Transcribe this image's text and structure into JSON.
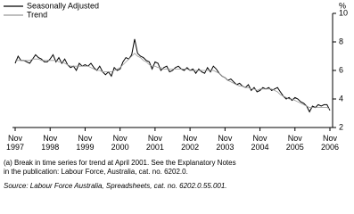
{
  "chart_data": {
    "type": "line",
    "y_unit": "%",
    "x": [
      "1997-11",
      "1997-12",
      "1998-01",
      "1998-02",
      "1998-03",
      "1998-04",
      "1998-05",
      "1998-06",
      "1998-07",
      "1998-08",
      "1998-09",
      "1998-10",
      "1998-11",
      "1998-12",
      "1999-01",
      "1999-02",
      "1999-03",
      "1999-04",
      "1999-05",
      "1999-06",
      "1999-07",
      "1999-08",
      "1999-09",
      "1999-10",
      "1999-11",
      "1999-12",
      "2000-01",
      "2000-02",
      "2000-03",
      "2000-04",
      "2000-05",
      "2000-06",
      "2000-07",
      "2000-08",
      "2000-09",
      "2000-10",
      "2000-11",
      "2000-12",
      "2001-01",
      "2001-02",
      "2001-03",
      "2001-04",
      "2001-05",
      "2001-06",
      "2001-07",
      "2001-08",
      "2001-09",
      "2001-10",
      "2001-11",
      "2001-12",
      "2002-01",
      "2002-02",
      "2002-03",
      "2002-04",
      "2002-05",
      "2002-06",
      "2002-07",
      "2002-08",
      "2002-09",
      "2002-10",
      "2002-11",
      "2002-12",
      "2003-01",
      "2003-02",
      "2003-03",
      "2003-04",
      "2003-05",
      "2003-06",
      "2003-07",
      "2003-08",
      "2003-09",
      "2003-10",
      "2003-11",
      "2003-12",
      "2004-01",
      "2004-02",
      "2004-03",
      "2004-04",
      "2004-05",
      "2004-06",
      "2004-07",
      "2004-08",
      "2004-09",
      "2004-10",
      "2004-11",
      "2004-12",
      "2005-01",
      "2005-02",
      "2005-03",
      "2005-04",
      "2005-05",
      "2005-06",
      "2005-07",
      "2005-08",
      "2005-09",
      "2005-10",
      "2005-11",
      "2005-12",
      "2006-01",
      "2006-02",
      "2006-03",
      "2006-04",
      "2006-05",
      "2006-06",
      "2006-07",
      "2006-08",
      "2006-09",
      "2006-10",
      "2006-11"
    ],
    "series": [
      {
        "name": "Seasonally Adjusted",
        "color": "#000000",
        "values": [
          6.5,
          7.0,
          6.7,
          6.7,
          6.6,
          6.5,
          6.8,
          7.1,
          6.9,
          6.8,
          6.6,
          6.6,
          6.8,
          7.1,
          6.6,
          6.9,
          6.5,
          6.8,
          6.4,
          6.2,
          6.3,
          6.0,
          6.5,
          6.3,
          6.4,
          6.3,
          6.5,
          6.2,
          6.0,
          6.3,
          5.9,
          5.7,
          5.9,
          5.6,
          6.2,
          6.0,
          6.1,
          6.6,
          6.9,
          6.8,
          7.1,
          8.2,
          7.2,
          7.0,
          6.9,
          6.7,
          6.6,
          6.1,
          6.6,
          6.5,
          6.0,
          6.2,
          6.3,
          5.9,
          6.0,
          6.2,
          6.3,
          6.1,
          6.0,
          6.2,
          6.0,
          6.1,
          5.8,
          6.1,
          5.9,
          5.8,
          6.2,
          5.9,
          6.3,
          6.1,
          5.8,
          5.6,
          5.5,
          5.3,
          5.4,
          5.2,
          5.0,
          5.1,
          4.9,
          4.8,
          5.0,
          4.6,
          4.8,
          4.5,
          4.6,
          4.8,
          4.7,
          4.8,
          4.6,
          4.7,
          4.8,
          4.5,
          4.2,
          4.0,
          4.1,
          3.9,
          4.1,
          4.0,
          3.8,
          3.7,
          3.5,
          3.1,
          3.5,
          3.4,
          3.6,
          3.5,
          3.6,
          3.6,
          3.2
        ]
      },
      {
        "name": "Trend",
        "color": "#999999",
        "values": [
          6.7,
          6.7,
          6.7,
          6.7,
          6.7,
          6.7,
          6.8,
          6.8,
          6.8,
          6.7,
          6.7,
          6.7,
          6.7,
          6.7,
          6.7,
          6.6,
          6.6,
          6.5,
          6.4,
          6.3,
          6.3,
          6.3,
          6.3,
          6.3,
          6.3,
          6.3,
          6.2,
          6.1,
          6.0,
          6.0,
          5.9,
          5.9,
          5.9,
          5.9,
          6.0,
          6.1,
          6.2,
          6.4,
          6.6,
          6.8,
          7.0,
          7.2,
          7.0,
          6.9,
          6.7,
          6.6,
          6.4,
          6.3,
          6.3,
          6.2,
          6.2,
          6.1,
          6.1,
          6.1,
          6.1,
          6.1,
          6.1,
          6.1,
          6.1,
          6.1,
          6.0,
          6.0,
          6.0,
          6.0,
          6.0,
          6.0,
          6.0,
          6.0,
          6.0,
          5.9,
          5.8,
          5.6,
          5.5,
          5.3,
          5.2,
          5.1,
          5.0,
          4.9,
          4.9,
          4.8,
          4.8,
          4.7,
          4.7,
          4.6,
          4.7,
          4.7,
          4.7,
          4.7,
          4.7,
          4.6,
          4.5,
          4.3,
          4.2,
          4.1,
          4.0,
          4.0,
          3.9,
          3.8,
          3.7,
          3.6,
          3.5,
          3.4,
          3.4,
          3.4,
          3.4,
          3.4,
          3.4,
          3.4,
          3.3
        ]
      }
    ],
    "xlim": [
      "1997-11",
      "2006-11"
    ],
    "xticks": [
      {
        "value": "1997-11",
        "label": "Nov 1997"
      },
      {
        "value": "1998-11",
        "label": "Nov 1998"
      },
      {
        "value": "1999-11",
        "label": "Nov 1999"
      },
      {
        "value": "2000-11",
        "label": "Nov 2000"
      },
      {
        "value": "2001-11",
        "label": "Nov 2001"
      },
      {
        "value": "2002-11",
        "label": "Nov 2002"
      },
      {
        "value": "2003-11",
        "label": "Nov 2003"
      },
      {
        "value": "2004-11",
        "label": "Nov 2004"
      },
      {
        "value": "2005-11",
        "label": "Nov 2005"
      },
      {
        "value": "2006-11",
        "label": "Nov 2006"
      }
    ],
    "ylim": [
      2,
      10
    ],
    "yticks": [
      2,
      4,
      6,
      8,
      10
    ],
    "y_axis_side": "right",
    "legend": "top-left",
    "grid": false,
    "notes": [
      "(a) Break in time series for trend at April 2001. See the Explanatory Notes",
      "in the publication: Labour Force, Australia, cat. no. 6202.0."
    ],
    "source": "Source: Labour Force Australia, Spreadsheets, cat. no. 6202.0.55.001."
  }
}
